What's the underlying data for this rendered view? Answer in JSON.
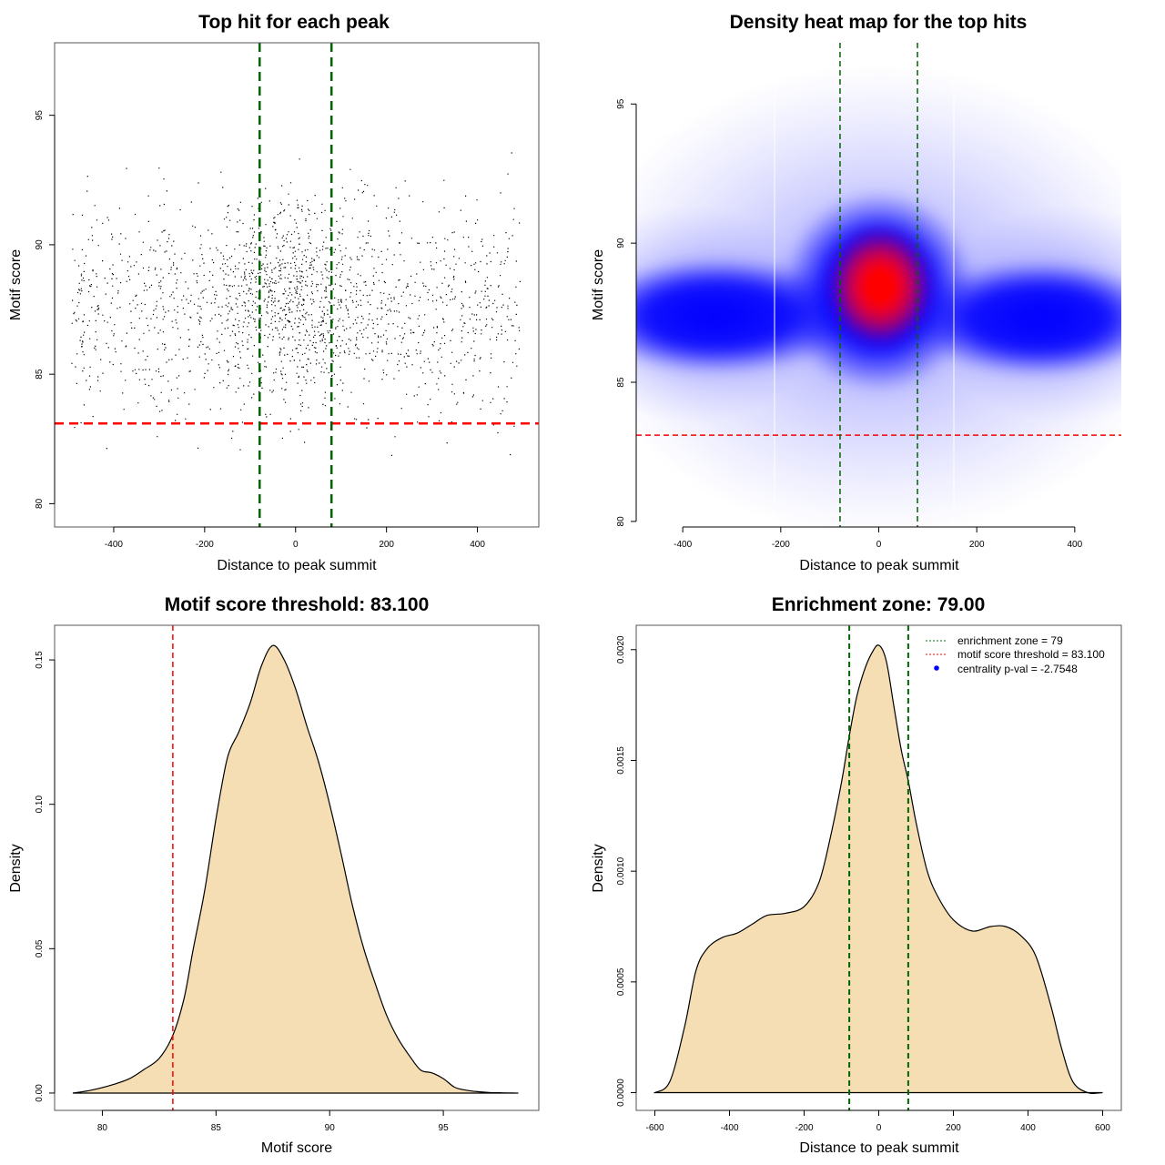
{
  "colors": {
    "threshold_line": "#ff0000",
    "zone_line": "#006400",
    "density_fill": "#f5deb3",
    "heat_low": "#ffffff",
    "heat_mid": "#0000ff",
    "heat_high": "#ff0000",
    "points": "#000000"
  },
  "chart_data": [
    {
      "id": "scatter",
      "type": "scatter",
      "title": "Top hit for each peak",
      "xlabel": "Distance to peak summit",
      "ylabel": "Motif score",
      "xlim": [
        -530,
        535
      ],
      "ylim": [
        79.1,
        97.8
      ],
      "xticks": [
        -400,
        -200,
        0,
        200,
        400
      ],
      "yticks": [
        80,
        85,
        90,
        95
      ],
      "threshold": 83.1,
      "zone": [
        -79,
        79
      ],
      "points_description_n": 9000
    },
    {
      "id": "heatmap",
      "type": "heatmap",
      "title": "Density heat map for the top hits",
      "xlabel": "Distance to peak summit",
      "ylabel": "Motif score",
      "xlim": [
        -495,
        495
      ],
      "ylim": [
        79.8,
        97.2
      ],
      "xticks": [
        -400,
        -200,
        0,
        200,
        400
      ],
      "yticks": [
        80,
        85,
        90,
        95
      ],
      "threshold": 83.1,
      "zone": [
        -79,
        79
      ]
    },
    {
      "id": "score_density",
      "type": "area",
      "title": "Motif score threshold: 83.100",
      "xlabel": "Motif score",
      "ylabel": "Density",
      "xlim": [
        77.9,
        99.2
      ],
      "ylim": [
        -0.006,
        0.162
      ],
      "xticks": [
        80,
        85,
        90,
        95
      ],
      "yticks": [
        0.0,
        0.05,
        0.1,
        0.15
      ],
      "ytick_labels": [
        "0.00",
        "0.05",
        "0.10",
        "0.15"
      ],
      "threshold": 83.1,
      "x": [
        78.7,
        79.5,
        80.5,
        81.2,
        81.8,
        82.5,
        83.1,
        83.6,
        84.0,
        84.5,
        85.0,
        85.5,
        86.0,
        86.5,
        87.0,
        87.5,
        88.0,
        88.5,
        89.0,
        89.5,
        90.0,
        90.5,
        91.0,
        91.5,
        92.0,
        92.5,
        93.0,
        93.5,
        94.0,
        94.5,
        95.0,
        95.5,
        96.0,
        96.5,
        97.0,
        97.5,
        98.3
      ],
      "y": [
        0.0,
        0.001,
        0.003,
        0.005,
        0.008,
        0.012,
        0.02,
        0.033,
        0.05,
        0.07,
        0.095,
        0.116,
        0.125,
        0.135,
        0.148,
        0.155,
        0.15,
        0.14,
        0.127,
        0.115,
        0.1,
        0.083,
        0.065,
        0.05,
        0.038,
        0.027,
        0.019,
        0.013,
        0.008,
        0.007,
        0.005,
        0.002,
        0.001,
        0.0005,
        0.0002,
        0.0001,
        0.0
      ]
    },
    {
      "id": "distance_density",
      "type": "area",
      "title": "Enrichment zone: 79.00",
      "xlabel": "Distance to peak summit",
      "ylabel": "Density",
      "xlim": [
        -650,
        650
      ],
      "ylim": [
        -8e-05,
        0.00211
      ],
      "xticks": [
        -600,
        -400,
        -200,
        0,
        200,
        400,
        600
      ],
      "yticks": [
        0.0,
        0.0005,
        0.001,
        0.0015,
        0.002
      ],
      "ytick_labels": [
        "0.0000",
        "0.0005",
        "0.0010",
        "0.0015",
        "0.0020"
      ],
      "zone": [
        -79,
        79
      ],
      "legend": {
        "position": "top-right",
        "entries": [
          {
            "label": "enrichment zone = 79",
            "symbol": "dotted",
            "color": "#006400"
          },
          {
            "label": "motif score threshold = 83.100",
            "symbol": "dotted",
            "color": "#ff0000"
          },
          {
            "label": "centrality p-val = -2.7548",
            "symbol": "dot",
            "color": "#0000ff"
          }
        ]
      },
      "x": [
        -600,
        -560,
        -520,
        -490,
        -460,
        -420,
        -380,
        -340,
        -300,
        -250,
        -200,
        -160,
        -130,
        -100,
        -80,
        -60,
        -40,
        -20,
        0,
        20,
        40,
        60,
        80,
        100,
        130,
        160,
        200,
        250,
        300,
        340,
        380,
        420,
        460,
        490,
        520,
        560,
        600
      ],
      "y": [
        0.0,
        5e-05,
        0.0003,
        0.00055,
        0.00065,
        0.0007,
        0.00072,
        0.00076,
        0.0008,
        0.00081,
        0.00084,
        0.00095,
        0.00115,
        0.0014,
        0.0016,
        0.00178,
        0.0019,
        0.00198,
        0.00202,
        0.00195,
        0.00175,
        0.00155,
        0.0014,
        0.00122,
        0.001,
        0.00088,
        0.00078,
        0.00073,
        0.00075,
        0.00075,
        0.00071,
        0.00062,
        0.0004,
        0.0002,
        5e-05,
        0.0,
        0.0
      ]
    }
  ]
}
